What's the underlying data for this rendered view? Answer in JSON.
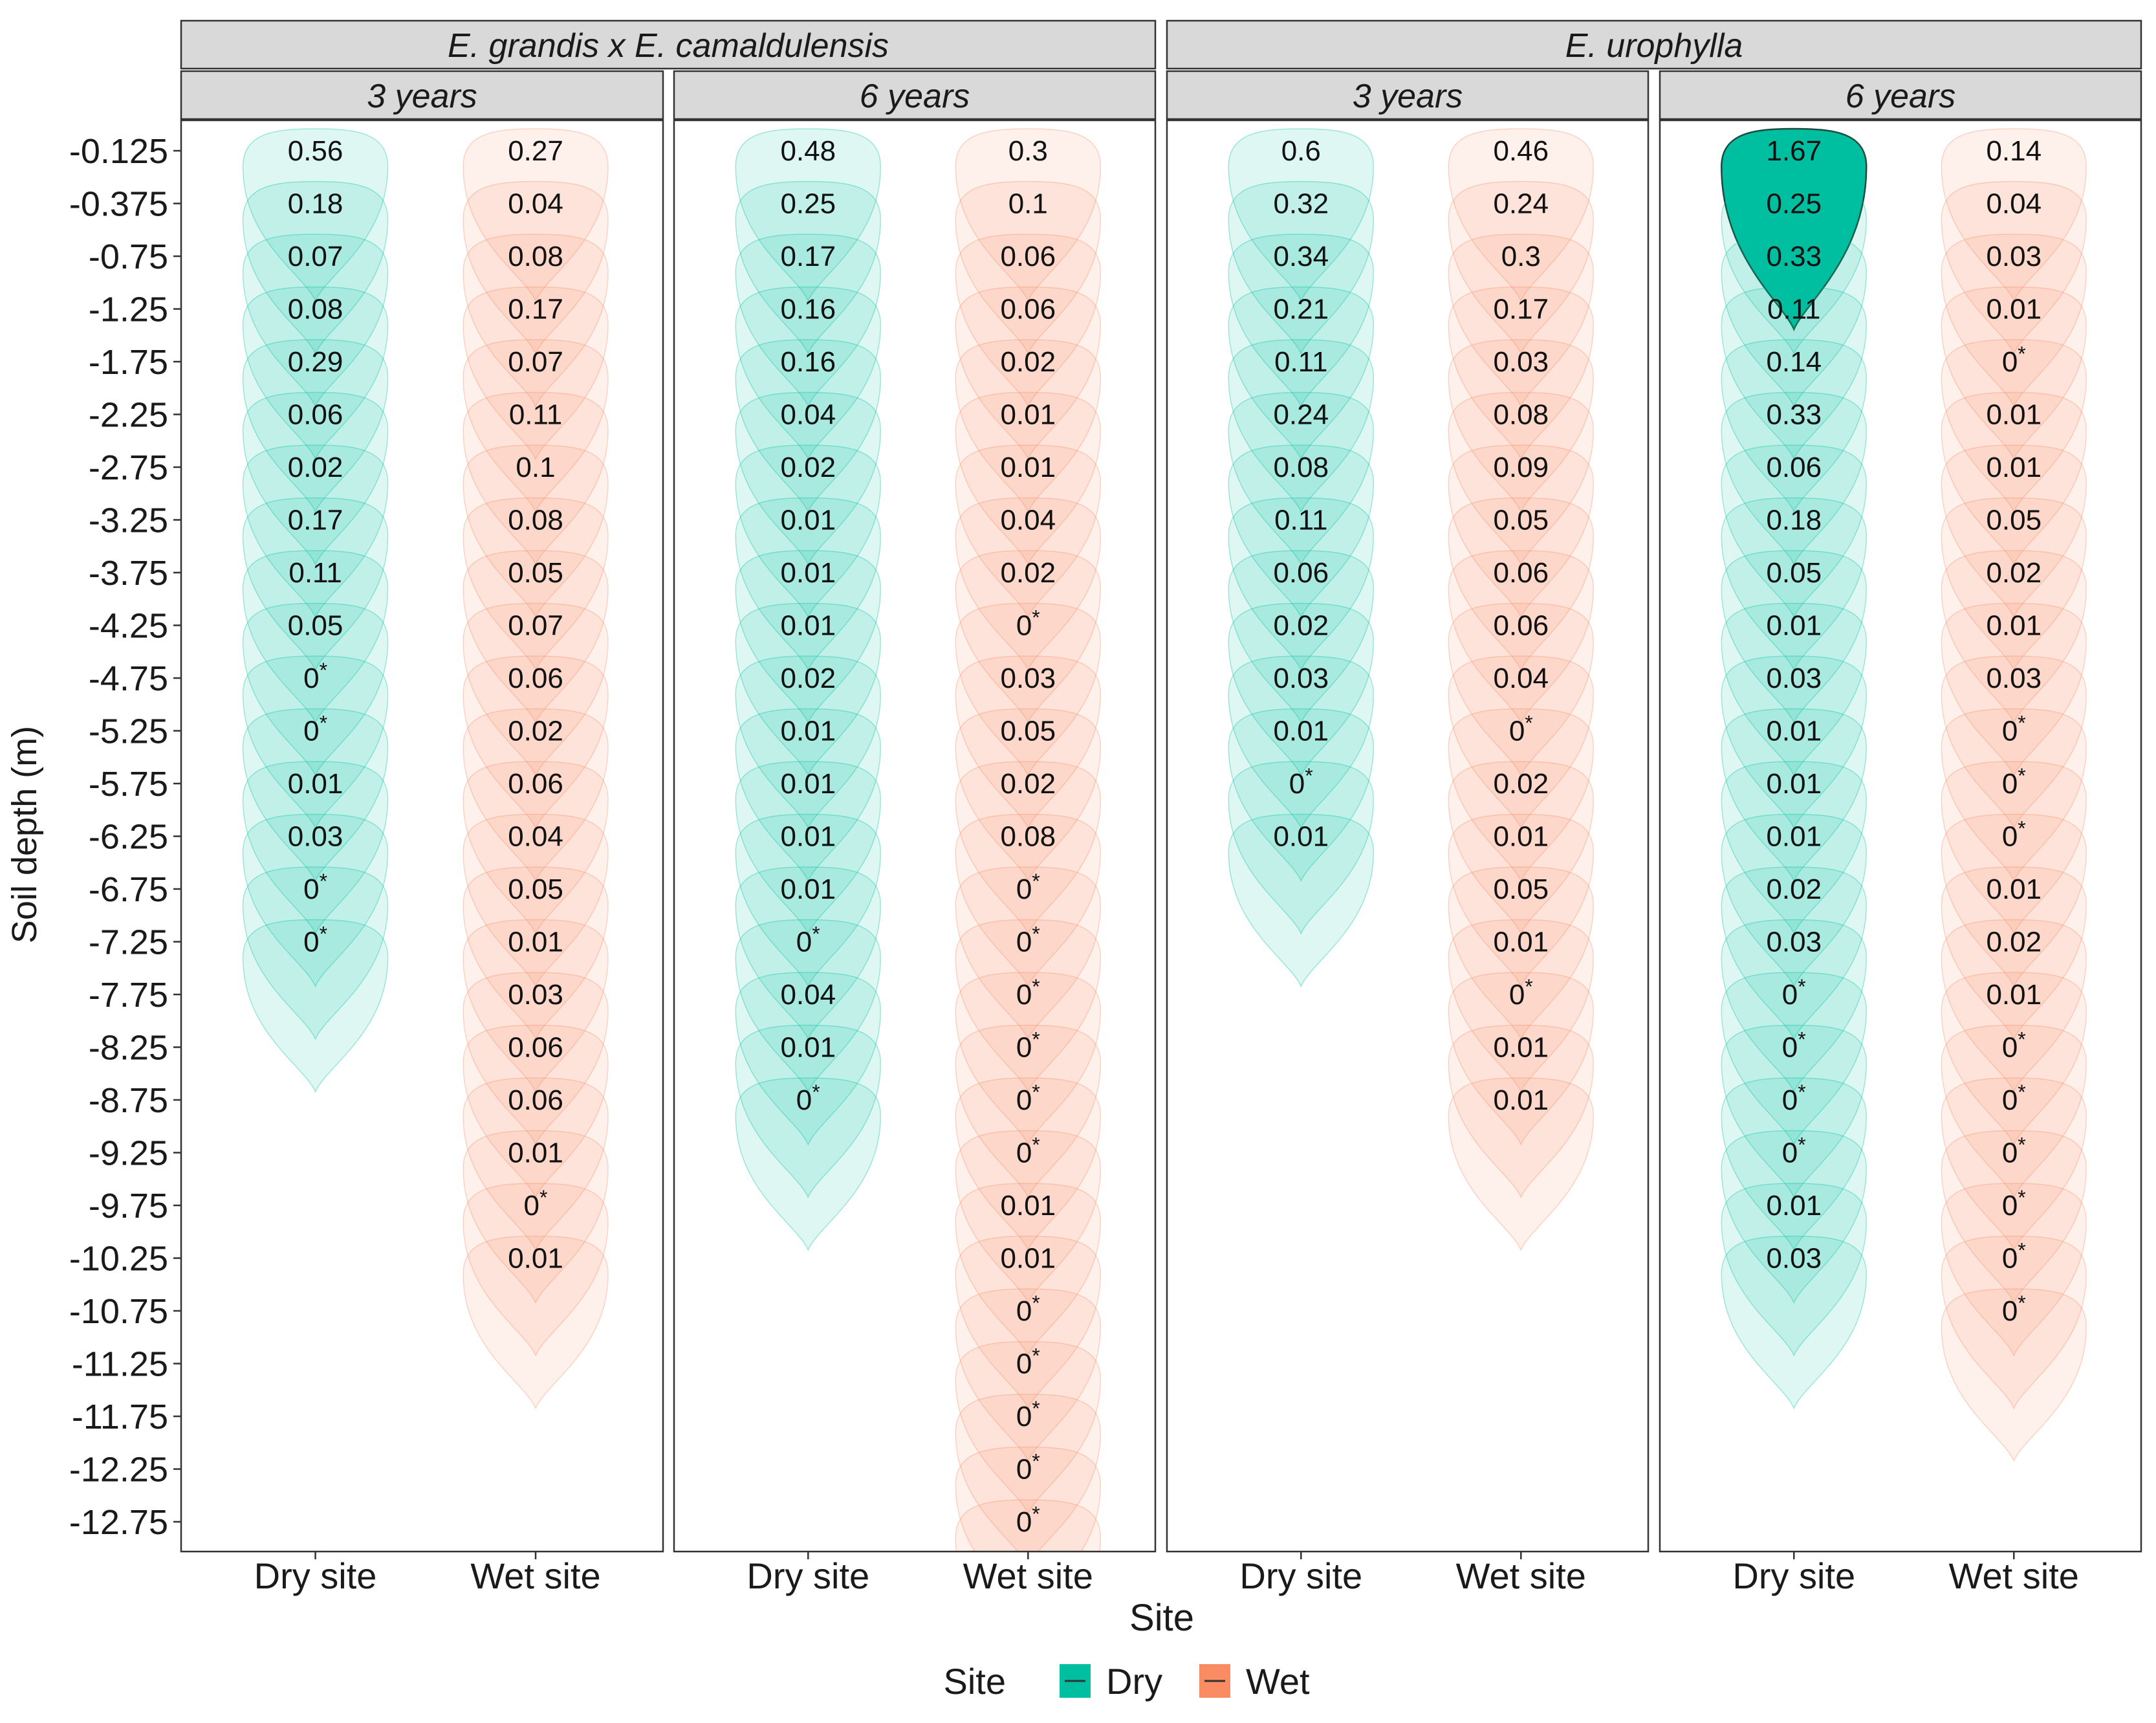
{
  "chart_data": {
    "type": "violin",
    "xlabel": "Site",
    "ylabel": "Soil depth (m)",
    "legend": {
      "title": "Site",
      "position": "bottom",
      "entries": [
        {
          "label": "Dry",
          "color": "#00BFA0"
        },
        {
          "label": "Wet",
          "color": "#FA8C64"
        }
      ]
    },
    "y_tick_labels": [
      "-0.125",
      "-0.375",
      "-0.75",
      "-1.25",
      "-1.75",
      "-2.25",
      "-2.75",
      "-3.25",
      "-3.75",
      "-4.25",
      "-4.75",
      "-5.25",
      "-5.75",
      "-6.25",
      "-6.75",
      "-7.25",
      "-7.75",
      "-8.25",
      "-8.75",
      "-9.25",
      "-9.75",
      "-10.25",
      "-10.75",
      "-11.25",
      "-11.75",
      "-12.25",
      "-12.75"
    ],
    "x_tick_labels": [
      "Dry site",
      "Wet site"
    ],
    "species": [
      "E. grandis x E. camaldulensis",
      "E. urophylla"
    ],
    "ages": [
      "3 years",
      "6 years"
    ],
    "star": "*",
    "panels": [
      {
        "species": "E. grandis x E. camaldulensis",
        "age": "3 years",
        "series": [
          {
            "site": "Dry site",
            "values": [
              "0.56",
              "0.18",
              "0.07",
              "0.08",
              "0.29",
              "0.06",
              "0.02",
              "0.17",
              "0.11",
              "0.05",
              "0*",
              "0*",
              "0.01",
              "0.03",
              "0*",
              "0*"
            ]
          },
          {
            "site": "Wet site",
            "values": [
              "0.27",
              "0.04",
              "0.08",
              "0.17",
              "0.07",
              "0.11",
              "0.1",
              "0.08",
              "0.05",
              "0.07",
              "0.06",
              "0.02",
              "0.06",
              "0.04",
              "0.05",
              "0.01",
              "0.03",
              "0.06",
              "0.06",
              "0.01",
              "0*",
              "0.01"
            ]
          }
        ]
      },
      {
        "species": "E. grandis x E. camaldulensis",
        "age": "6 years",
        "series": [
          {
            "site": "Dry site",
            "values": [
              "0.48",
              "0.25",
              "0.17",
              "0.16",
              "0.16",
              "0.04",
              "0.02",
              "0.01",
              "0.01",
              "0.01",
              "0.02",
              "0.01",
              "0.01",
              "0.01",
              "0.01",
              "0*",
              "0.04",
              "0.01",
              "0*"
            ]
          },
          {
            "site": "Wet site",
            "values": [
              "0.3",
              "0.1",
              "0.06",
              "0.06",
              "0.02",
              "0.01",
              "0.01",
              "0.04",
              "0.02",
              "0*",
              "0.03",
              "0.05",
              "0.02",
              "0.08",
              "0*",
              "0*",
              "0*",
              "0*",
              "0*",
              "0*",
              "0.01",
              "0.01",
              "0*",
              "0*",
              "0*",
              "0*",
              "0*"
            ]
          }
        ]
      },
      {
        "species": "E. urophylla",
        "age": "3 years",
        "series": [
          {
            "site": "Dry site",
            "values": [
              "0.6",
              "0.32",
              "0.34",
              "0.21",
              "0.11",
              "0.24",
              "0.08",
              "0.11",
              "0.06",
              "0.02",
              "0.03",
              "0.01",
              "0*",
              "0.01"
            ]
          },
          {
            "site": "Wet site",
            "values": [
              "0.46",
              "0.24",
              "0.3",
              "0.17",
              "0.03",
              "0.08",
              "0.09",
              "0.05",
              "0.06",
              "0.06",
              "0.04",
              "0*",
              "0.02",
              "0.01",
              "0.05",
              "0.01",
              "0*",
              "0.01",
              "0.01"
            ]
          }
        ]
      },
      {
        "species": "E. urophylla",
        "age": "6 years",
        "series": [
          {
            "site": "Dry site",
            "values": [
              "1.67",
              "0.25",
              "0.33",
              "0.11",
              "0.14",
              "0.33",
              "0.06",
              "0.18",
              "0.05",
              "0.01",
              "0.03",
              "0.01",
              "0.01",
              "0.01",
              "0.02",
              "0.03",
              "0*",
              "0*",
              "0*",
              "0*",
              "0.01",
              "0.03"
            ]
          },
          {
            "site": "Wet site",
            "values": [
              "0.14",
              "0.04",
              "0.03",
              "0.01",
              "0*",
              "0.01",
              "0.01",
              "0.05",
              "0.02",
              "0.01",
              "0.03",
              "0*",
              "0*",
              "0*",
              "0.01",
              "0.02",
              "0.01",
              "0*",
              "0*",
              "0*",
              "0*",
              "0*",
              "0*"
            ]
          }
        ]
      }
    ]
  }
}
